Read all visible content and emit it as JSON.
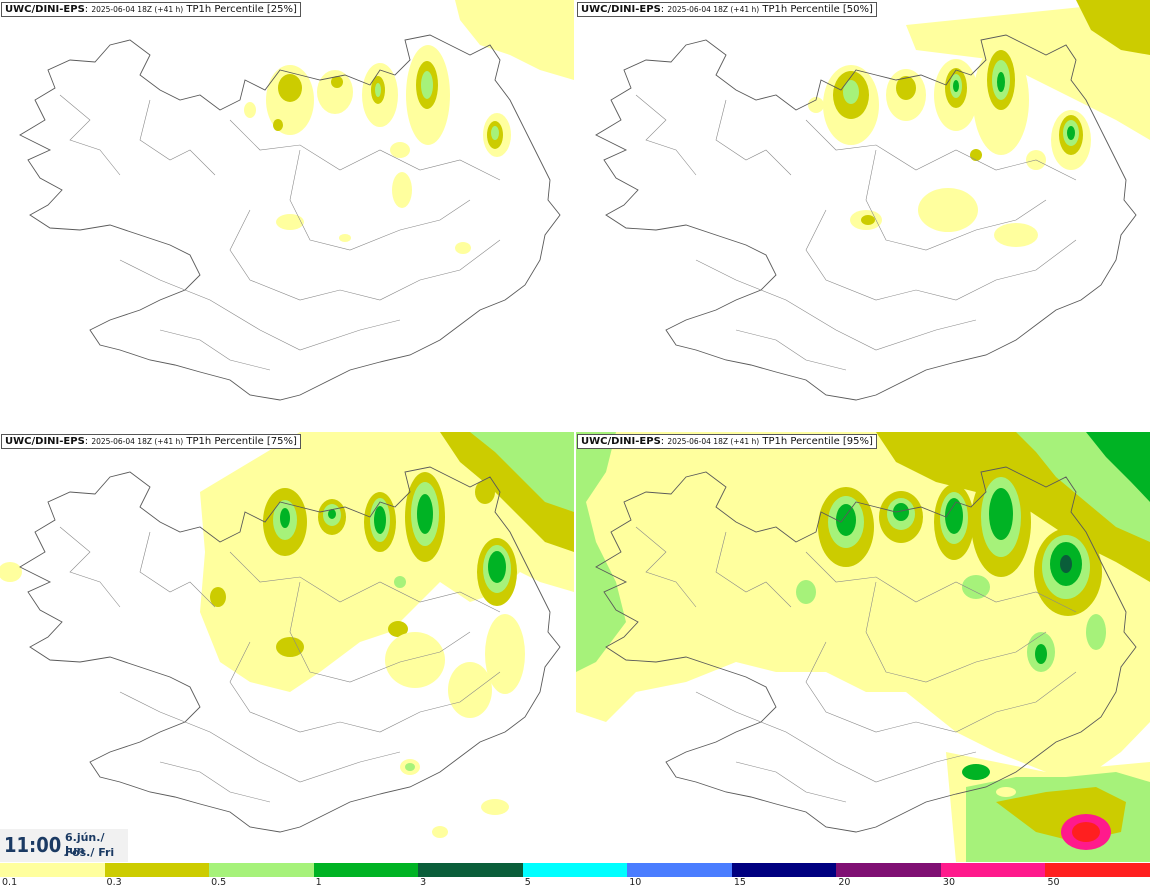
{
  "panels": [
    {
      "model": "UWC/DINI-EPS",
      "run": "2025-06-04 18Z (+41 h)",
      "product": "TP1h Percentile [25%]"
    },
    {
      "model": "UWC/DINI-EPS",
      "run": "2025-06-04 18Z (+41 h)",
      "product": "TP1h Percentile [50%]"
    },
    {
      "model": "UWC/DINI-EPS",
      "run": "2025-06-04 18Z (+41 h)",
      "product": "TP1h Percentile [75%]"
    },
    {
      "model": "UWC/DINI-EPS",
      "run": "2025-06-04 18Z (+41 h)",
      "product": "TP1h Percentile [95%]"
    }
  ],
  "valid_time": {
    "time": "11:00",
    "date_line1": "6.jún./ Jun",
    "date_line2": "Fös./ Fri"
  },
  "legend": {
    "colors": [
      "#ffff9e",
      "#cccc00",
      "#a6f27a",
      "#00b324",
      "#0a5e3a",
      "#00ffff",
      "#4a7dff",
      "#000080",
      "#7f0f73",
      "#ff1a8c",
      "#ff1f1f"
    ],
    "ticks": [
      "0.1",
      "0.3",
      "0.5",
      "1",
      "3",
      "5",
      "10",
      "15",
      "20",
      "30",
      "50"
    ]
  }
}
